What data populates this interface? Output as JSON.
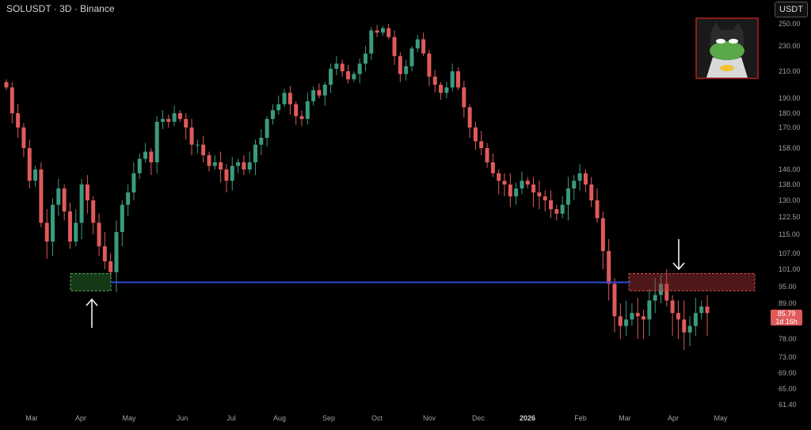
{
  "header": {
    "title": "SOLUSDT · 3D · Binance",
    "currency": "USDT"
  },
  "price_tag": {
    "price": "85.79",
    "countdown": "1d 16h",
    "color": "#e05a5a"
  },
  "colors": {
    "up": "#3b9a7e",
    "down": "#e05a5a",
    "level": "#2f4bd6",
    "support": "#2e7d32",
    "resistance": "#b03636"
  },
  "chart_data": {
    "type": "candlestick",
    "yticks": [
      "250.00",
      "230.00",
      "210.00",
      "190.00",
      "180.00",
      "170.00",
      "158.00",
      "146.00",
      "138.00",
      "130.00",
      "122.50",
      "115.00",
      "107.00",
      "101.00",
      "95.00",
      "89.00",
      "78.00",
      "73.00",
      "69.00",
      "65.00",
      "61.40"
    ],
    "xticks": [
      "Mar",
      "Apr",
      "May",
      "Jun",
      "Jul",
      "Aug",
      "Sep",
      "Oct",
      "Nov",
      "Dec",
      "2026",
      "Feb",
      "Mar",
      "Apr",
      "May"
    ],
    "level": 96.5,
    "support_zone": {
      "low": 93.5,
      "high": 99.5
    },
    "resistance_zone": {
      "low": 93.5,
      "high": 99.5
    },
    "close_series": [
      198,
      180,
      170,
      158,
      140,
      146,
      120,
      112,
      128,
      136,
      125,
      112,
      120,
      138,
      130,
      120,
      110,
      104,
      100,
      116,
      128,
      134,
      144,
      152,
      156,
      150,
      174,
      176,
      174,
      180,
      176,
      170,
      160,
      160,
      154,
      148,
      150,
      146,
      140,
      148,
      150,
      146,
      150,
      160,
      164,
      176,
      182,
      186,
      194,
      186,
      178,
      176,
      188,
      196,
      192,
      200,
      212,
      216,
      210,
      204,
      208,
      216,
      224,
      244,
      242,
      246,
      238,
      222,
      208,
      214,
      228,
      236,
      224,
      206,
      200,
      194,
      198,
      210,
      198,
      184,
      170,
      162,
      158,
      150,
      144,
      140,
      138,
      132,
      136,
      140,
      138,
      134,
      132,
      130,
      126,
      124,
      128,
      136,
      140,
      144,
      138,
      130,
      122,
      108,
      96,
      85,
      82,
      84,
      86,
      85,
      84,
      90,
      92,
      96,
      90,
      86,
      84,
      80,
      82,
      86,
      88,
      86
    ]
  }
}
